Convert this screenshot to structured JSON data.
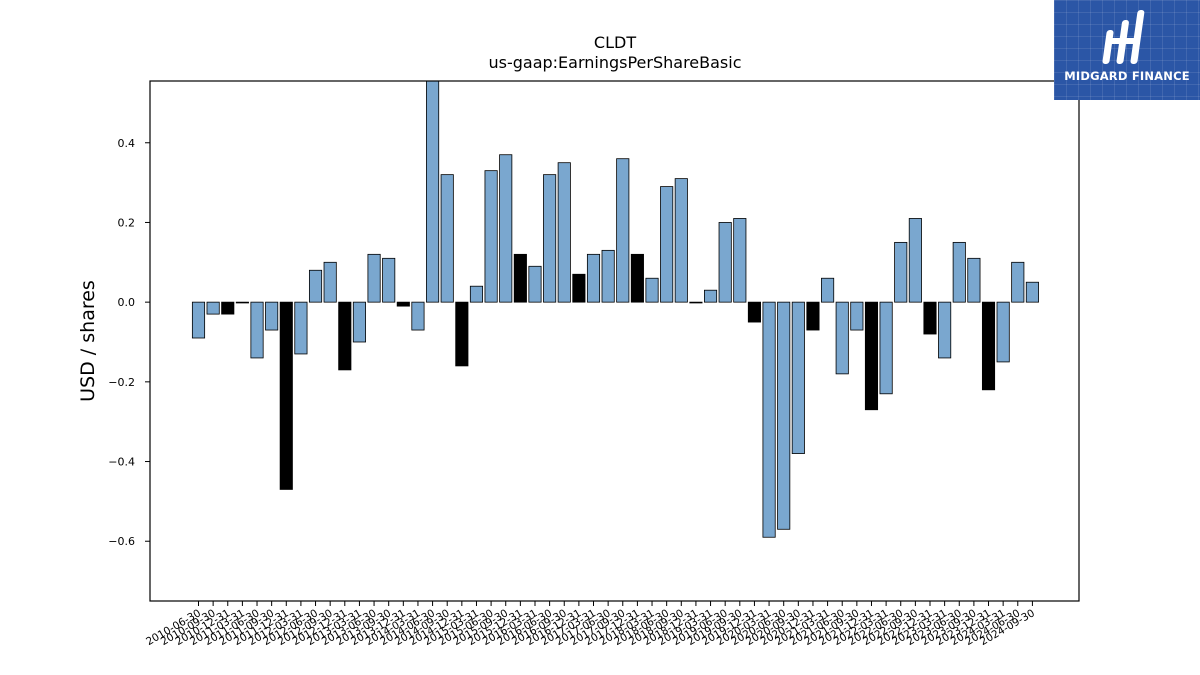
{
  "chart_data": {
    "type": "bar",
    "title": "CLDT",
    "subtitle": "us-gaap:EarningsPerShareBasic",
    "ylabel": "USD / shares",
    "xlabel": "",
    "ylim": [
      -0.75,
      0.555
    ],
    "yticks": [
      0.4,
      0.2,
      0.0,
      -0.2,
      -0.4,
      -0.6
    ],
    "ytick_labels": [
      "0.4",
      "0.2",
      "0.0",
      "−0.2",
      "−0.4",
      "−0.6"
    ],
    "grid": false,
    "colors": {
      "primary": "#7aa7cf",
      "highlight": "#000000",
      "edge": "#000000"
    },
    "categories": [
      "2010-06-30",
      "2010-09-30",
      "2010-12-31",
      "2011-03-31",
      "2011-06-30",
      "2011-09-30",
      "2011-12-31",
      "2012-03-31",
      "2012-06-30",
      "2012-09-30",
      "2012-12-31",
      "2013-03-31",
      "2013-06-30",
      "2013-09-30",
      "2013-12-31",
      "2014-03-31",
      "2014-06-30",
      "2014-09-30",
      "2014-12-31",
      "2015-03-31",
      "2015-06-30",
      "2015-09-30",
      "2015-12-31",
      "2016-03-31",
      "2016-06-30",
      "2016-09-30",
      "2016-12-31",
      "2017-03-31",
      "2017-06-30",
      "2017-09-30",
      "2017-12-31",
      "2018-03-31",
      "2018-06-30",
      "2018-09-30",
      "2018-12-31",
      "2019-03-31",
      "2019-06-30",
      "2019-09-30",
      "2019-12-31",
      "2020-03-31",
      "2020-06-30",
      "2020-09-30",
      "2020-12-31",
      "2021-03-31",
      "2021-06-30",
      "2021-09-30",
      "2021-12-31",
      "2022-03-31",
      "2022-06-30",
      "2022-09-30",
      "2022-12-31",
      "2023-03-31",
      "2023-06-30",
      "2023-09-30",
      "2023-12-31",
      "2024-03-31",
      "2024-06-30",
      "2024-09-30"
    ],
    "values": [
      -0.09,
      -0.03,
      -0.03,
      0.0,
      -0.14,
      -0.07,
      -0.47,
      -0.13,
      0.08,
      0.1,
      -0.17,
      -0.1,
      0.12,
      0.11,
      -0.01,
      -0.07,
      0.57,
      0.32,
      -0.16,
      0.04,
      0.33,
      0.37,
      0.12,
      0.09,
      0.32,
      0.35,
      0.07,
      0.12,
      0.13,
      0.36,
      0.12,
      0.06,
      0.29,
      0.31,
      0.0,
      0.03,
      0.2,
      0.21,
      -0.05,
      -0.59,
      -0.57,
      -0.38,
      -0.07,
      0.06,
      -0.18,
      -0.07,
      -0.27,
      -0.23,
      0.15,
      0.21,
      -0.08,
      -0.14,
      0.15,
      0.11,
      -0.22,
      -0.15,
      0.1,
      0.05
    ],
    "highlighted": [
      false,
      false,
      true,
      true,
      false,
      false,
      true,
      false,
      false,
      false,
      true,
      false,
      false,
      false,
      true,
      false,
      false,
      false,
      true,
      false,
      false,
      false,
      true,
      false,
      false,
      false,
      true,
      false,
      false,
      false,
      true,
      false,
      false,
      false,
      true,
      false,
      false,
      false,
      true,
      false,
      false,
      false,
      true,
      false,
      false,
      false,
      true,
      false,
      false,
      false,
      true,
      false,
      false,
      false,
      true,
      false,
      false,
      false
    ]
  },
  "logo": {
    "text": "MIDGARD FINANCE",
    "background": "#2b56a6",
    "icon": "midgard-logo-mark"
  }
}
